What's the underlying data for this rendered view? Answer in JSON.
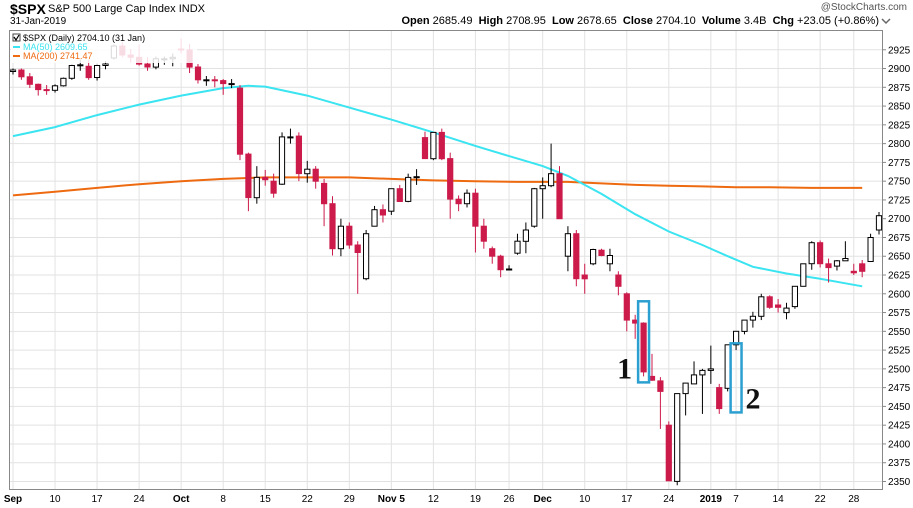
{
  "header": {
    "ticker": "$SPX",
    "name": "S&P 500 Large Cap Index",
    "exchange": "INDX",
    "date": "31-Jan-2019",
    "copyright": "@StockCharts.com",
    "open_label": "Open",
    "open": "2685.49",
    "high_label": "High",
    "high": "2708.95",
    "low_label": "Low",
    "low": "2678.65",
    "close_label": "Close",
    "close": "2704.10",
    "volume_label": "Volume",
    "volume": "3.4B",
    "chg_label": "Chg",
    "chg": "+23.05 (+0.86%)"
  },
  "legend": {
    "price": "$SPX (Daily) 2704.10 (31 Jan)",
    "ma50": "MA(50) 2609.65",
    "ma200": "MA(200) 2741.47"
  },
  "colors": {
    "up": "#ffffff",
    "down": "#cc1a4a",
    "ma50": "#3ae4f0",
    "ma200": "#ee6a10",
    "grid": "#e2e2e2",
    "highlight": "#2b9fd0"
  },
  "chart_data": {
    "type": "candlestick",
    "ylim": [
      2340,
      2950
    ],
    "yticks": [
      2350,
      2375,
      2400,
      2425,
      2450,
      2475,
      2500,
      2525,
      2550,
      2575,
      2600,
      2625,
      2650,
      2675,
      2700,
      2725,
      2750,
      2775,
      2800,
      2825,
      2850,
      2875,
      2900,
      2925
    ],
    "xticks": [
      {
        "label": "Sep",
        "i": 0,
        "bold": true
      },
      {
        "label": "10",
        "i": 5
      },
      {
        "label": "17",
        "i": 10
      },
      {
        "label": "24",
        "i": 15
      },
      {
        "label": "Oct",
        "i": 20,
        "bold": true
      },
      {
        "label": "8",
        "i": 25
      },
      {
        "label": "15",
        "i": 30
      },
      {
        "label": "22",
        "i": 35
      },
      {
        "label": "29",
        "i": 40
      },
      {
        "label": "Nov 5",
        "i": 45,
        "bold": true
      },
      {
        "label": "12",
        "i": 50
      },
      {
        "label": "19",
        "i": 55
      },
      {
        "label": "26",
        "i": 59
      },
      {
        "label": "Dec",
        "i": 63,
        "bold": true
      },
      {
        "label": "10",
        "i": 68
      },
      {
        "label": "17",
        "i": 73
      },
      {
        "label": "24",
        "i": 78
      },
      {
        "label": "2019",
        "i": 83,
        "bold": true
      },
      {
        "label": "7",
        "i": 86
      },
      {
        "label": "14",
        "i": 91
      },
      {
        "label": "22",
        "i": 96
      },
      {
        "label": "28",
        "i": 100
      }
    ],
    "candles": [
      [
        2896,
        2900,
        2892,
        2898
      ],
      [
        2898,
        2900,
        2885,
        2889
      ],
      [
        2889,
        2894,
        2874,
        2879
      ],
      [
        2879,
        2880,
        2864,
        2872
      ],
      [
        2872,
        2878,
        2865,
        2871
      ],
      [
        2871,
        2879,
        2868,
        2877
      ],
      [
        2877,
        2888,
        2876,
        2887
      ],
      [
        2887,
        2905,
        2885,
        2904
      ],
      [
        2904,
        2912,
        2897,
        2905
      ],
      [
        2903,
        2912,
        2885,
        2888
      ],
      [
        2888,
        2905,
        2884,
        2904
      ],
      [
        2904,
        2910,
        2899,
        2906
      ],
      [
        2914,
        2932,
        2912,
        2930
      ],
      [
        2930,
        2935,
        2915,
        2918
      ],
      [
        2918,
        2926,
        2908,
        2915
      ],
      [
        2915,
        2932,
        2904,
        2906
      ],
      [
        2906,
        2915,
        2897,
        2902
      ],
      [
        2902,
        2916,
        2899,
        2913
      ],
      [
        2913,
        2916,
        2905,
        2913
      ],
      [
        2913,
        2920,
        2903,
        2915
      ],
      [
        2926,
        2940,
        2920,
        2925
      ],
      [
        2925,
        2933,
        2894,
        2902
      ],
      [
        2902,
        2906,
        2880,
        2885
      ],
      [
        2885,
        2890,
        2877,
        2885
      ],
      [
        2885,
        2890,
        2875,
        2884
      ],
      [
        2884,
        2886,
        2865,
        2880
      ],
      [
        2880,
        2886,
        2874,
        2880
      ],
      [
        2874,
        2878,
        2778,
        2786
      ],
      [
        2786,
        2788,
        2710,
        2728
      ],
      [
        2728,
        2770,
        2720,
        2755
      ],
      [
        2755,
        2765,
        2744,
        2752
      ],
      [
        2750,
        2760,
        2728,
        2734
      ],
      [
        2746,
        2815,
        2745,
        2809
      ],
      [
        2809,
        2820,
        2800,
        2809
      ],
      [
        2810,
        2815,
        2750,
        2760
      ],
      [
        2760,
        2777,
        2748,
        2766
      ],
      [
        2766,
        2770,
        2740,
        2750
      ],
      [
        2747,
        2753,
        2690,
        2720
      ],
      [
        2720,
        2730,
        2651,
        2660
      ],
      [
        2660,
        2700,
        2650,
        2690
      ],
      [
        2690,
        2695,
        2660,
        2665
      ],
      [
        2665,
        2670,
        2600,
        2655
      ],
      [
        2620,
        2685,
        2618,
        2680
      ],
      [
        2690,
        2717,
        2690,
        2712
      ],
      [
        2712,
        2719,
        2695,
        2705
      ],
      [
        2710,
        2740,
        2705,
        2740
      ],
      [
        2740,
        2745,
        2723,
        2723
      ],
      [
        2723,
        2760,
        2722,
        2755
      ],
      [
        2755,
        2766,
        2745,
        2756
      ],
      [
        2808,
        2816,
        2780,
        2780
      ],
      [
        2780,
        2815,
        2778,
        2815
      ],
      [
        2815,
        2820,
        2778,
        2780
      ],
      [
        2780,
        2788,
        2700,
        2726
      ],
      [
        2726,
        2731,
        2710,
        2720
      ],
      [
        2720,
        2739,
        2715,
        2734
      ],
      [
        2734,
        2740,
        2655,
        2690
      ],
      [
        2690,
        2700,
        2660,
        2670
      ],
      [
        2660,
        2663,
        2640,
        2650
      ],
      [
        2650,
        2652,
        2622,
        2632
      ],
      [
        2633,
        2638,
        2632,
        2633
      ],
      [
        2654,
        2680,
        2652,
        2670
      ],
      [
        2670,
        2695,
        2654,
        2685
      ],
      [
        2690,
        2741,
        2688,
        2740
      ],
      [
        2740,
        2755,
        2700,
        2744
      ],
      [
        2744,
        2800,
        2742,
        2760
      ],
      [
        2760,
        2770,
        2700,
        2700
      ],
      [
        2650,
        2690,
        2630,
        2680
      ],
      [
        2680,
        2685,
        2610,
        2620
      ],
      [
        2625,
        2640,
        2600,
        2620
      ],
      [
        2640,
        2660,
        2638,
        2659
      ],
      [
        2658,
        2660,
        2650,
        2651
      ],
      [
        2640,
        2660,
        2630,
        2651
      ],
      [
        2625,
        2630,
        2598,
        2610
      ],
      [
        2600,
        2602,
        2550,
        2565
      ],
      [
        2565,
        2572,
        2540,
        2561
      ],
      [
        2561,
        2562,
        2490,
        2496
      ],
      [
        2490,
        2520,
        2484,
        2485
      ],
      [
        2484,
        2489,
        2420,
        2470
      ],
      [
        2425,
        2430,
        2351,
        2351
      ],
      [
        2350,
        2465,
        2345,
        2467
      ],
      [
        2467,
        2481,
        2438,
        2481
      ],
      [
        2480,
        2510,
        2480,
        2492
      ],
      [
        2492,
        2500,
        2440,
        2498
      ],
      [
        2498,
        2531,
        2480,
        2500
      ],
      [
        2475,
        2480,
        2440,
        2447
      ],
      [
        2474,
        2532,
        2470,
        2532
      ],
      [
        2532,
        2545,
        2525,
        2550
      ],
      [
        2550,
        2565,
        2546,
        2565
      ],
      [
        2565,
        2576,
        2555,
        2570
      ],
      [
        2570,
        2600,
        2565,
        2596
      ],
      [
        2596,
        2598,
        2580,
        2582
      ],
      [
        2585,
        2593,
        2575,
        2582
      ],
      [
        2575,
        2588,
        2566,
        2581
      ],
      [
        2583,
        2610,
        2580,
        2610
      ],
      [
        2610,
        2635,
        2610,
        2640
      ],
      [
        2640,
        2670,
        2632,
        2668
      ],
      [
        2668,
        2671,
        2635,
        2640
      ],
      [
        2640,
        2647,
        2615,
        2635
      ],
      [
        2637,
        2645,
        2631,
        2644
      ],
      [
        2644,
        2670,
        2644,
        2647
      ],
      [
        2630,
        2640,
        2625,
        2628
      ],
      [
        2640,
        2645,
        2622,
        2630
      ],
      [
        2643,
        2680,
        2643,
        2675
      ],
      [
        2685,
        2709,
        2679,
        2704
      ]
    ],
    "ma50": [
      [
        0,
        2810
      ],
      [
        5,
        2822
      ],
      [
        10,
        2838
      ],
      [
        15,
        2852
      ],
      [
        20,
        2864
      ],
      [
        25,
        2874
      ],
      [
        28,
        2877
      ],
      [
        30,
        2876
      ],
      [
        35,
        2864
      ],
      [
        40,
        2848
      ],
      [
        45,
        2832
      ],
      [
        50,
        2815
      ],
      [
        55,
        2797
      ],
      [
        60,
        2780
      ],
      [
        63,
        2770
      ],
      [
        66,
        2757
      ],
      [
        70,
        2733
      ],
      [
        74,
        2706
      ],
      [
        78,
        2683
      ],
      [
        82,
        2665
      ],
      [
        85,
        2650
      ],
      [
        88,
        2636
      ],
      [
        92,
        2627
      ],
      [
        96,
        2620
      ],
      [
        99,
        2614
      ],
      [
        101,
        2610
      ]
    ],
    "ma200": [
      [
        0,
        2731
      ],
      [
        5,
        2736
      ],
      [
        10,
        2741
      ],
      [
        15,
        2746
      ],
      [
        20,
        2750
      ],
      [
        25,
        2753
      ],
      [
        30,
        2755
      ],
      [
        35,
        2755
      ],
      [
        40,
        2755
      ],
      [
        45,
        2753
      ],
      [
        50,
        2751
      ],
      [
        55,
        2750
      ],
      [
        60,
        2749
      ],
      [
        63,
        2749
      ],
      [
        66,
        2749
      ],
      [
        70,
        2747
      ],
      [
        74,
        2745
      ],
      [
        78,
        2744
      ],
      [
        82,
        2743
      ],
      [
        86,
        2742
      ],
      [
        90,
        2742
      ],
      [
        95,
        2741
      ],
      [
        101,
        2741
      ]
    ],
    "annotations": [
      {
        "label": "1",
        "from": 75,
        "to": 75,
        "low": 2482,
        "high": 2590,
        "label_side": "left"
      },
      {
        "label": "2",
        "from": 86,
        "to": 86,
        "low": 2442,
        "high": 2534,
        "label_side": "right"
      }
    ]
  }
}
